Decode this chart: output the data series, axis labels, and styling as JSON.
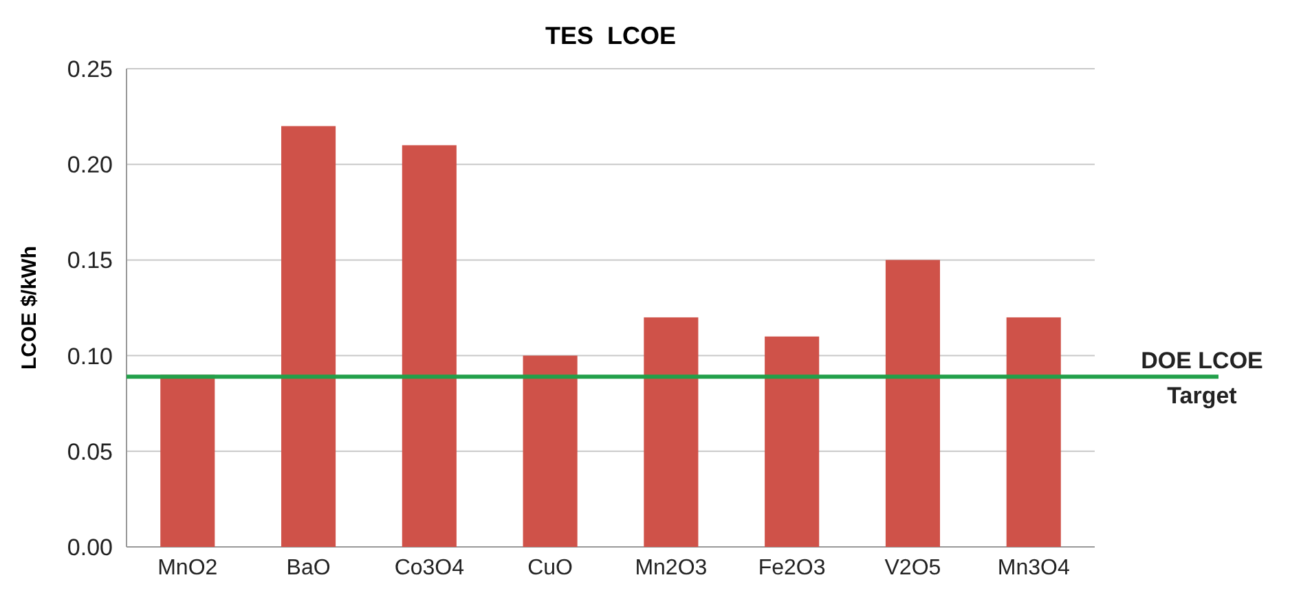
{
  "chart_data": {
    "type": "bar",
    "title": "TES  LCOE",
    "ylabel": "LCOE $/kWh",
    "categories": [
      "MnO2",
      "BaO",
      "Co3O4",
      "CuO",
      "Mn2O3",
      "Fe2O3",
      "V2O5",
      "Mn3O4"
    ],
    "values": [
      0.09,
      0.22,
      0.21,
      0.1,
      0.12,
      0.11,
      0.15,
      0.12
    ],
    "color": "#cf5249",
    "ylim": [
      0,
      0.25
    ],
    "yticks": [
      {
        "value": 0,
        "label": "0.00"
      },
      {
        "value": 0.05,
        "label": "0.05"
      },
      {
        "value": 0.1,
        "label": "0.10"
      },
      {
        "value": 0.15,
        "label": "0.15"
      },
      {
        "value": 0.2,
        "label": "0.20"
      },
      {
        "value": 0.25,
        "label": "0.25"
      }
    ],
    "grid": "y",
    "ref_lines": [
      {
        "axis": "y",
        "value": 0.089,
        "label": "DOE LCOE Target",
        "color": "#22a04a"
      }
    ]
  }
}
